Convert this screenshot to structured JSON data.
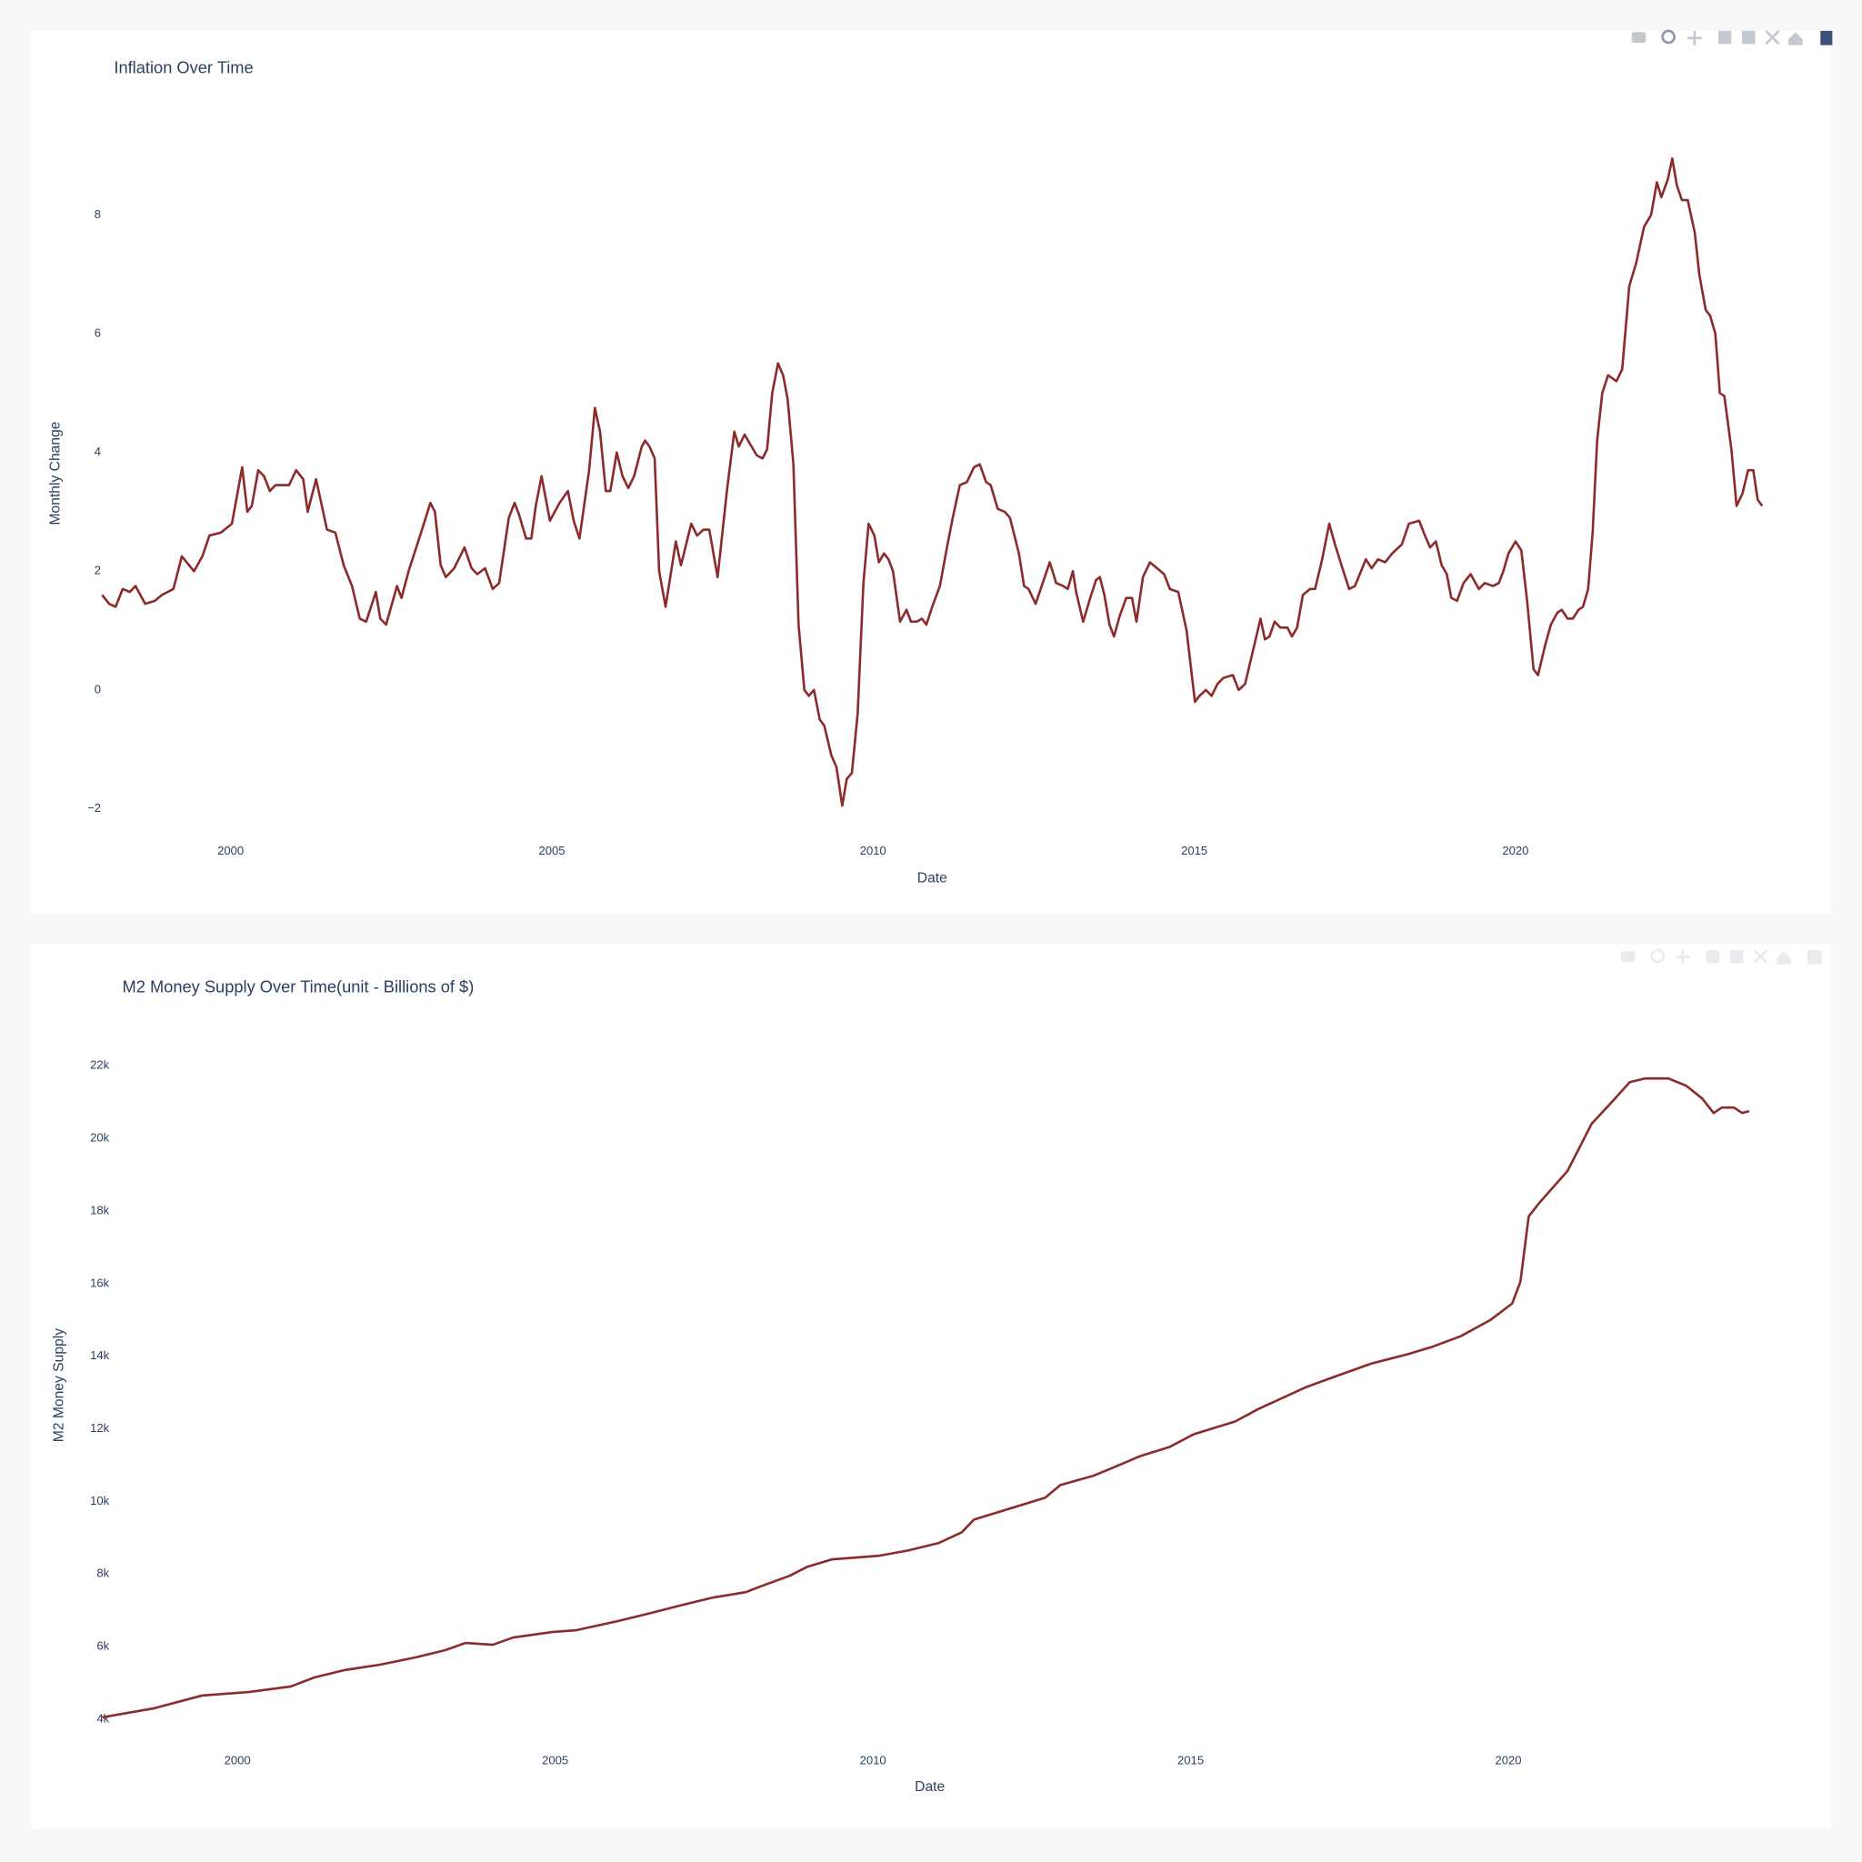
{
  "chart_data": [
    {
      "type": "line",
      "title": "Inflation Over Time",
      "x_label": "Date",
      "y_label": "Monthly Change",
      "color": "#8b2b2b",
      "grid": false,
      "xlim": [
        1998.0,
        2023.84
      ],
      "xticks": [
        2000,
        2005,
        2010,
        2015,
        2020
      ],
      "ylim": [
        -2.3,
        9.6
      ],
      "yticks": [
        {
          "value": -2,
          "label": "−2"
        },
        0,
        2,
        4,
        6,
        8
      ],
      "x": [
        1998.0,
        1998.11,
        1998.21,
        1998.32,
        1998.43,
        1998.52,
        1998.67,
        1998.82,
        1998.93,
        1999.11,
        1999.24,
        1999.43,
        1999.56,
        1999.67,
        1999.85,
        2000.02,
        2000.18,
        2000.26,
        2000.33,
        2000.43,
        2000.52,
        2000.61,
        2000.7,
        2000.91,
        2001.02,
        2001.13,
        2001.2,
        2001.33,
        2001.5,
        2001.63,
        2001.76,
        2001.89,
        2002.01,
        2002.11,
        2002.26,
        2002.33,
        2002.42,
        2002.59,
        2002.66,
        2002.77,
        2002.92,
        2003.11,
        2003.18,
        2003.27,
        2003.35,
        2003.48,
        2003.64,
        2003.75,
        2003.84,
        2003.96,
        2004.08,
        2004.18,
        2004.33,
        2004.42,
        2004.49,
        2004.6,
        2004.68,
        2004.75,
        2004.84,
        2004.97,
        2005.12,
        2005.25,
        2005.34,
        2005.43,
        2005.58,
        2005.67,
        2005.75,
        2005.84,
        2005.91,
        2006.01,
        2006.1,
        2006.19,
        2006.28,
        2006.4,
        2006.45,
        2006.52,
        2006.6,
        2006.67,
        2006.77,
        2006.93,
        2007.01,
        2007.17,
        2007.26,
        2007.36,
        2007.45,
        2007.58,
        2007.73,
        2007.84,
        2007.91,
        2008.0,
        2008.19,
        2008.28,
        2008.35,
        2008.43,
        2008.52,
        2008.6,
        2008.67,
        2008.76,
        2008.84,
        2008.93,
        2009.0,
        2009.08,
        2009.17,
        2009.24,
        2009.35,
        2009.43,
        2009.52,
        2009.59,
        2009.67,
        2009.76,
        2009.85,
        2009.93,
        2010.02,
        2010.09,
        2010.17,
        2010.24,
        2010.31,
        2010.42,
        2010.52,
        2010.59,
        2010.68,
        2010.76,
        2010.83,
        2010.92,
        2011.04,
        2011.15,
        2011.24,
        2011.35,
        2011.46,
        2011.57,
        2011.66,
        2011.76,
        2011.83,
        2011.94,
        2012.05,
        2012.13,
        2012.27,
        2012.35,
        2012.42,
        2012.53,
        2012.64,
        2012.75,
        2012.85,
        2012.96,
        2013.03,
        2013.11,
        2013.16,
        2013.27,
        2013.38,
        2013.47,
        2013.53,
        2013.6,
        2013.68,
        2013.75,
        2013.84,
        2013.94,
        2014.03,
        2014.1,
        2014.2,
        2014.31,
        2014.42,
        2014.53,
        2014.62,
        2014.75,
        2014.88,
        2015.01,
        2015.08,
        2015.18,
        2015.27,
        2015.36,
        2015.45,
        2015.6,
        2015.69,
        2015.79,
        2015.9,
        2016.03,
        2016.1,
        2016.17,
        2016.25,
        2016.34,
        2016.45,
        2016.52,
        2016.6,
        2016.69,
        2016.8,
        2016.88,
        2016.99,
        2017.1,
        2017.19,
        2017.32,
        2017.41,
        2017.5,
        2017.67,
        2017.76,
        2017.86,
        2017.97,
        2018.08,
        2018.23,
        2018.34,
        2018.5,
        2018.59,
        2018.67,
        2018.76,
        2018.85,
        2018.93,
        2019.0,
        2019.09,
        2019.19,
        2019.3,
        2019.43,
        2019.52,
        2019.65,
        2019.74,
        2019.81,
        2019.89,
        2020.0,
        2020.09,
        2020.18,
        2020.28,
        2020.35,
        2020.46,
        2020.55,
        2020.65,
        2020.72,
        2020.81,
        2020.89,
        2020.98,
        2021.05,
        2021.13,
        2021.2,
        2021.27,
        2021.35,
        2021.44,
        2021.57,
        2021.66,
        2021.77,
        2021.88,
        2022.0,
        2022.11,
        2022.2,
        2022.27,
        2022.37,
        2022.44,
        2022.51,
        2022.59,
        2022.68,
        2022.79,
        2022.86,
        2022.96,
        2023.03,
        2023.11,
        2023.18,
        2023.25,
        2023.36,
        2023.44,
        2023.53,
        2023.62,
        2023.7,
        2023.77,
        2023.84
      ],
      "values": [
        1.6,
        1.45,
        1.4,
        1.7,
        1.65,
        1.75,
        1.45,
        1.5,
        1.6,
        1.7,
        2.25,
        2.0,
        2.25,
        2.6,
        2.65,
        2.8,
        3.75,
        3.0,
        3.1,
        3.7,
        3.6,
        3.35,
        3.45,
        3.45,
        3.7,
        3.55,
        3.0,
        3.55,
        2.7,
        2.65,
        2.1,
        1.75,
        1.2,
        1.15,
        1.65,
        1.2,
        1.1,
        1.75,
        1.55,
        2.0,
        2.5,
        3.15,
        3.0,
        2.1,
        1.9,
        2.05,
        2.4,
        2.05,
        1.95,
        2.05,
        1.7,
        1.8,
        2.9,
        3.15,
        2.95,
        2.55,
        2.55,
        3.1,
        3.6,
        2.85,
        3.15,
        3.35,
        2.85,
        2.55,
        3.7,
        4.75,
        4.35,
        3.35,
        3.35,
        4.0,
        3.6,
        3.4,
        3.6,
        4.1,
        4.2,
        4.1,
        3.9,
        2.0,
        1.4,
        2.5,
        2.1,
        2.8,
        2.6,
        2.7,
        2.7,
        1.9,
        3.4,
        4.35,
        4.1,
        4.3,
        3.95,
        3.9,
        4.05,
        5.0,
        5.5,
        5.3,
        4.9,
        3.8,
        1.1,
        0.0,
        -0.1,
        0.0,
        -0.5,
        -0.6,
        -1.1,
        -1.3,
        -1.95,
        -1.5,
        -1.4,
        -0.4,
        1.8,
        2.8,
        2.6,
        2.15,
        2.3,
        2.2,
        2.0,
        1.15,
        1.35,
        1.15,
        1.15,
        1.2,
        1.1,
        1.4,
        1.75,
        2.4,
        2.9,
        3.45,
        3.5,
        3.75,
        3.8,
        3.5,
        3.45,
        3.05,
        3.0,
        2.9,
        2.3,
        1.75,
        1.7,
        1.45,
        1.8,
        2.15,
        1.8,
        1.75,
        1.7,
        2.0,
        1.65,
        1.15,
        1.55,
        1.85,
        1.9,
        1.6,
        1.1,
        0.9,
        1.25,
        1.55,
        1.55,
        1.15,
        1.9,
        2.15,
        2.05,
        1.95,
        1.7,
        1.65,
        1.0,
        -0.2,
        -0.1,
        0.0,
        -0.1,
        0.1,
        0.2,
        0.25,
        0.0,
        0.1,
        0.6,
        1.2,
        0.85,
        0.9,
        1.15,
        1.05,
        1.05,
        0.9,
        1.05,
        1.6,
        1.7,
        1.7,
        2.2,
        2.8,
        2.45,
        2.0,
        1.7,
        1.75,
        2.2,
        2.05,
        2.2,
        2.15,
        2.3,
        2.45,
        2.8,
        2.85,
        2.6,
        2.4,
        2.5,
        2.1,
        1.95,
        1.55,
        1.5,
        1.8,
        1.95,
        1.7,
        1.8,
        1.75,
        1.8,
        2.0,
        2.3,
        2.5,
        2.35,
        1.5,
        0.35,
        0.25,
        0.75,
        1.1,
        1.3,
        1.35,
        1.2,
        1.2,
        1.35,
        1.4,
        1.7,
        2.65,
        4.2,
        5.0,
        5.3,
        5.2,
        5.4,
        6.8,
        7.2,
        7.8,
        8.0,
        8.55,
        8.3,
        8.6,
        8.95,
        8.5,
        8.25,
        8.25,
        7.7,
        7.0,
        6.4,
        6.3,
        6.0,
        5.0,
        4.95,
        4.05,
        3.1,
        3.3,
        3.7,
        3.7,
        3.2,
        3.1
      ]
    },
    {
      "type": "line",
      "title": "M2 Money Supply Over Time(unit - Billions of $)",
      "x_label": "Date",
      "y_label": "M2 Money Supply",
      "color": "#8b2b2b",
      "grid": false,
      "xlim": [
        1997.87,
        2023.79
      ],
      "xticks": [
        2000,
        2005,
        2010,
        2015,
        2020
      ],
      "ylim": [
        3500,
        22900
      ],
      "yticks": [
        {
          "value": 4000,
          "label": "4k"
        },
        {
          "value": 6000,
          "label": "6k"
        },
        {
          "value": 8000,
          "label": "8k"
        },
        {
          "value": 10000,
          "label": "10k"
        },
        {
          "value": 12000,
          "label": "12k"
        },
        {
          "value": 14000,
          "label": "14k"
        },
        {
          "value": 16000,
          "label": "16k"
        },
        {
          "value": 18000,
          "label": "18k"
        },
        {
          "value": 20000,
          "label": "20k"
        },
        {
          "value": 22000,
          "label": "22k"
        }
      ],
      "x": [
        1997.87,
        1998.69,
        1999.44,
        2000.19,
        2000.84,
        2001.21,
        2001.68,
        2002.24,
        2002.8,
        2003.27,
        2003.59,
        2004.02,
        2004.34,
        2004.95,
        2005.33,
        2005.98,
        2006.45,
        2007.01,
        2007.48,
        2008.0,
        2008.22,
        2008.69,
        2008.97,
        2009.35,
        2009.72,
        2010.09,
        2010.56,
        2011.03,
        2011.4,
        2011.59,
        2012.15,
        2012.71,
        2012.95,
        2013.46,
        2013.74,
        2014.21,
        2014.67,
        2015.05,
        2015.7,
        2016.07,
        2016.82,
        2017.29,
        2017.85,
        2018.41,
        2018.79,
        2019.25,
        2019.72,
        2020.06,
        2020.19,
        2020.32,
        2020.5,
        2020.93,
        2021.31,
        2021.68,
        2021.91,
        2022.15,
        2022.52,
        2022.8,
        2023.05,
        2023.23,
        2023.36,
        2023.55,
        2023.68,
        2023.79
      ],
      "values": [
        4050,
        4300,
        4650,
        4750,
        4900,
        5150,
        5350,
        5500,
        5700,
        5900,
        6100,
        6050,
        6250,
        6400,
        6450,
        6700,
        6900,
        7150,
        7350,
        7500,
        7650,
        7950,
        8200,
        8400,
        8450,
        8500,
        8650,
        8850,
        9150,
        9500,
        9800,
        10100,
        10450,
        10700,
        10900,
        11250,
        11500,
        11850,
        12200,
        12550,
        13150,
        13450,
        13800,
        14050,
        14250,
        14550,
        15000,
        15450,
        16050,
        17850,
        18250,
        19100,
        20400,
        21100,
        21550,
        21650,
        21650,
        21450,
        21100,
        20700,
        20850,
        20850,
        20700,
        20750
      ]
    }
  ]
}
